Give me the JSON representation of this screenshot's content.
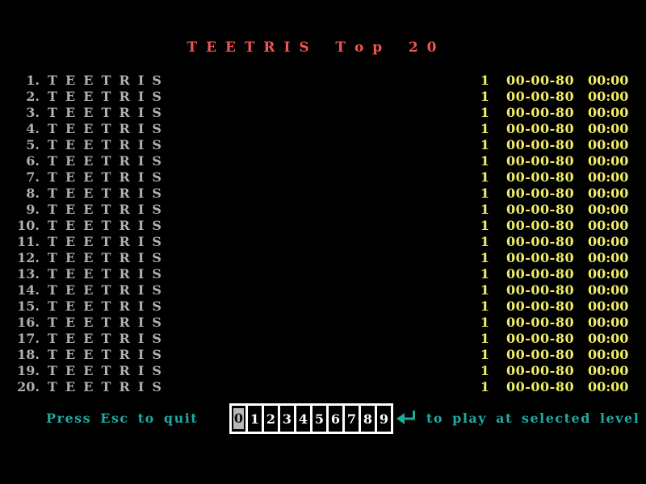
{
  "title": "T E E T R I S   T o p   2 0",
  "colors": {
    "background": "#000000",
    "title_red": "#f05555",
    "row_gray": "#b0b0b0",
    "value_yellow": "#f0ee64",
    "hint_teal": "#1eaaa0",
    "selector_white": "#ffffff",
    "selected_bg": "#b8b8b8"
  },
  "scores": {
    "rows": [
      {
        "rank": "1.",
        "name": "T E E T R I S",
        "score": "1",
        "date": "00-00-80",
        "time": "00:00"
      },
      {
        "rank": "2.",
        "name": "T E E T R I S",
        "score": "1",
        "date": "00-00-80",
        "time": "00:00"
      },
      {
        "rank": "3.",
        "name": "T E E T R I S",
        "score": "1",
        "date": "00-00-80",
        "time": "00:00"
      },
      {
        "rank": "4.",
        "name": "T E E T R I S",
        "score": "1",
        "date": "00-00-80",
        "time": "00:00"
      },
      {
        "rank": "5.",
        "name": "T E E T R I S",
        "score": "1",
        "date": "00-00-80",
        "time": "00:00"
      },
      {
        "rank": "6.",
        "name": "T E E T R I S",
        "score": "1",
        "date": "00-00-80",
        "time": "00:00"
      },
      {
        "rank": "7.",
        "name": "T E E T R I S",
        "score": "1",
        "date": "00-00-80",
        "time": "00:00"
      },
      {
        "rank": "8.",
        "name": "T E E T R I S",
        "score": "1",
        "date": "00-00-80",
        "time": "00:00"
      },
      {
        "rank": "9.",
        "name": "T E E T R I S",
        "score": "1",
        "date": "00-00-80",
        "time": "00:00"
      },
      {
        "rank": "10.",
        "name": "T E E T R I S",
        "score": "1",
        "date": "00-00-80",
        "time": "00:00"
      },
      {
        "rank": "11.",
        "name": "T E E T R I S",
        "score": "1",
        "date": "00-00-80",
        "time": "00:00"
      },
      {
        "rank": "12.",
        "name": "T E E T R I S",
        "score": "1",
        "date": "00-00-80",
        "time": "00:00"
      },
      {
        "rank": "13.",
        "name": "T E E T R I S",
        "score": "1",
        "date": "00-00-80",
        "time": "00:00"
      },
      {
        "rank": "14.",
        "name": "T E E T R I S",
        "score": "1",
        "date": "00-00-80",
        "time": "00:00"
      },
      {
        "rank": "15.",
        "name": "T E E T R I S",
        "score": "1",
        "date": "00-00-80",
        "time": "00:00"
      },
      {
        "rank": "16.",
        "name": "T E E T R I S",
        "score": "1",
        "date": "00-00-80",
        "time": "00:00"
      },
      {
        "rank": "17.",
        "name": "T E E T R I S",
        "score": "1",
        "date": "00-00-80",
        "time": "00:00"
      },
      {
        "rank": "18.",
        "name": "T E E T R I S",
        "score": "1",
        "date": "00-00-80",
        "time": "00:00"
      },
      {
        "rank": "19.",
        "name": "T E E T R I S",
        "score": "1",
        "date": "00-00-80",
        "time": "00:00"
      },
      {
        "rank": "20.",
        "name": "T E E T R I S",
        "score": "1",
        "date": "00-00-80",
        "time": "00:00"
      }
    ]
  },
  "footer": {
    "quit_hint": "Press Esc to quit",
    "play_hint": "to play at selected level",
    "enter_icon": "return-arrow",
    "level_selector": {
      "digits": [
        "0",
        "1",
        "2",
        "3",
        "4",
        "5",
        "6",
        "7",
        "8",
        "9"
      ],
      "selected": "0"
    }
  }
}
